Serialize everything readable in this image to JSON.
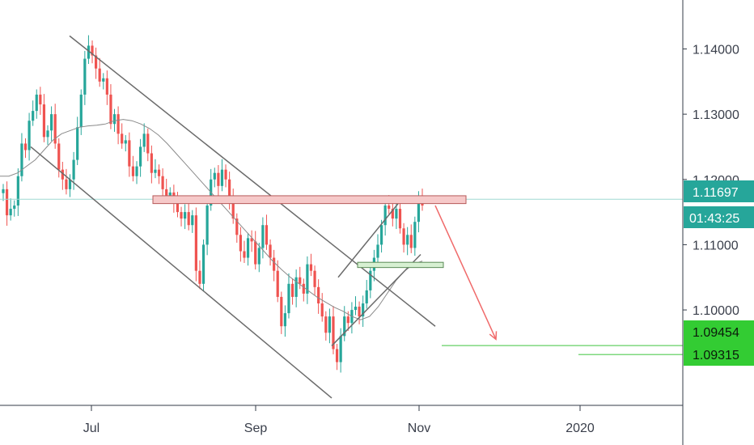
{
  "chart_data": {
    "type": "candlestick",
    "instrument_hint": "EURUSD-like daily price",
    "y_axis": {
      "ticks": [
        "1.14000",
        "1.13000",
        "1.12000",
        "1.11000",
        "1.10000"
      ],
      "ylim": [
        1.0855,
        1.1475
      ]
    },
    "x_axis": {
      "ticks": [
        "Jul",
        "Sep",
        "Nov",
        "2020"
      ]
    },
    "price_labels": {
      "current_price": "1.11697",
      "countdown": "01:43:25",
      "target_1": "1.09454",
      "target_2": "1.09315"
    },
    "close_series": [
      1.1185,
      1.1145,
      1.1155,
      1.116,
      1.1205,
      1.1255,
      1.1245,
      1.129,
      1.1305,
      1.133,
      1.1315,
      1.1265,
      1.1275,
      1.13,
      1.1255,
      1.1215,
      1.12,
      1.1185,
      1.12,
      1.123,
      1.128,
      1.133,
      1.1385,
      1.1405,
      1.139,
      1.137,
      1.135,
      1.1355,
      1.133,
      1.1285,
      1.13,
      1.127,
      1.1255,
      1.126,
      1.122,
      1.1205,
      1.122,
      1.125,
      1.127,
      1.124,
      1.121,
      1.1215,
      1.1205,
      1.1185,
      1.1175,
      1.118,
      1.1165,
      1.115,
      1.114,
      1.115,
      1.113,
      1.1145,
      1.106,
      1.104,
      1.11,
      1.116,
      1.12,
      1.121,
      1.119,
      1.1215,
      1.12,
      1.117,
      1.114,
      1.1115,
      1.109,
      1.108,
      1.111,
      1.1105,
      1.107,
      1.1095,
      1.113,
      1.11,
      1.108,
      1.106,
      1.102,
      1.0975,
      1.0995,
      1.104,
      1.102,
      1.105,
      1.104,
      1.1025,
      1.107,
      1.106,
      1.1035,
      1.101,
      1.099,
      1.0965,
      1.099,
      1.094,
      1.092,
      1.096,
      1.099,
      1.098,
      1.1,
      1.1005,
      1.099,
      1.101,
      1.103,
      1.106,
      1.108,
      1.11,
      1.113,
      1.116,
      1.1155,
      1.114,
      1.1155,
      1.1125,
      1.11,
      1.1115,
      1.1095,
      1.1135,
      1.117,
      1.116
    ],
    "moving_average": [
      1.1205,
      1.1205,
      1.121,
      1.122,
      1.123,
      1.1245,
      1.126,
      1.127,
      1.1275,
      1.128,
      1.1282,
      1.1283,
      1.1285,
      1.129,
      1.1292,
      1.129,
      1.1285,
      1.1278,
      1.1268,
      1.1255,
      1.124,
      1.1225,
      1.121,
      1.1195,
      1.118,
      1.1165,
      1.115,
      1.1135,
      1.112,
      1.1105,
      1.109,
      1.1075,
      1.1062,
      1.105,
      1.104,
      1.103,
      1.102,
      1.1012,
      1.1004,
      1.0998,
      1.099,
      1.0985,
      1.099,
      1.1005,
      1.1025,
      1.1045,
      1.106,
      1.107,
      1.1075
    ],
    "drawings": {
      "descending_channel_upper": [
        [
          1.142,
          0
        ],
        [
          1.0975,
          1
        ]
      ],
      "descending_channel_lower": [
        [
          1.125,
          0
        ],
        [
          1.0865,
          1
        ]
      ],
      "rising_channel_lower": [
        [
          1.0945,
          0
        ],
        [
          1.1085,
          1
        ]
      ],
      "rising_channel_upper": [
        [
          1.105,
          0
        ],
        [
          1.1175,
          1
        ]
      ],
      "resistance_zone": [
        1.1163,
        1.1175
      ],
      "support_zone": [
        1.1065,
        1.1073
      ],
      "projection_arrow": [
        [
          1.116,
          0
        ],
        [
          1.0955,
          1
        ]
      ],
      "target_lines": [
        1.09454,
        1.09315
      ]
    },
    "colors": {
      "up": "#26a69a",
      "down": "#ef5350",
      "current_price": "#26a69a",
      "target": "#33cc33",
      "resistance": "#e57373",
      "support": "#66bb6a"
    }
  }
}
